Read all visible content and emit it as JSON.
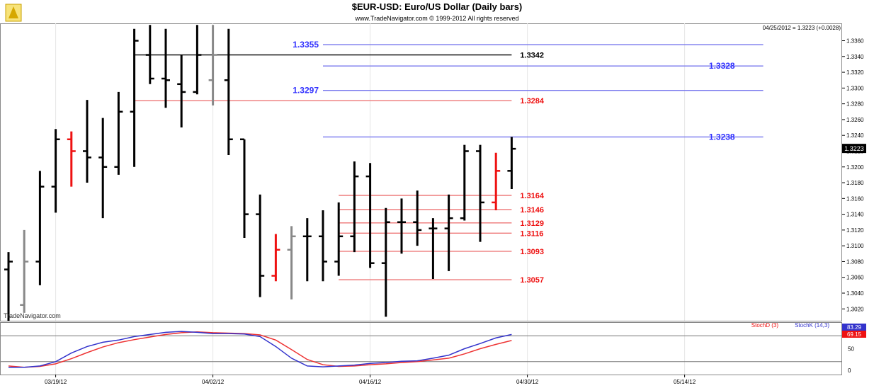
{
  "header": {
    "title": "$EUR-USD:  Euro/US Dollar  (Daily bars)",
    "subtitle": "www.TradeNavigator.com © 1999-2012 All rights reserved",
    "quote": "04/25/2012 = 1.3223 (+0.0028)",
    "watermark": "TradeNavigator.com"
  },
  "colors": {
    "background": "#ffffff",
    "bar": "#000000",
    "bar_down": "#ee1111",
    "bar_gray": "#888888",
    "level_blue": "#3333ff",
    "level_blue_line": "#7777ee",
    "level_red": "#ee1111",
    "level_red_line": "#ee7777",
    "level_black": "#000000",
    "stoch_d": "#ee3333",
    "stoch_k": "#3333cc"
  },
  "chart_data": {
    "type": "bar",
    "subtype": "ohlc",
    "title": "$EUR-USD:  Euro/US Dollar  (Daily bars)",
    "ylim": [
      1.3005,
      1.3382
    ],
    "price_ticks": [
      "1.3360",
      "1.3340",
      "1.3320",
      "1.3300",
      "1.3280",
      "1.3260",
      "1.3240",
      "1.3220",
      "1.3200",
      "1.3180",
      "1.3160",
      "1.3140",
      "1.3120",
      "1.3100",
      "1.3080",
      "1.3060",
      "1.3040",
      "1.3020"
    ],
    "current_price": "1.3223",
    "x_ticks": [
      "03/19/12",
      "04/02/12",
      "04/16/12",
      "04/30/12",
      "05/14/12"
    ],
    "x_tick_index": [
      3,
      13,
      23,
      33,
      43
    ],
    "bars": [
      {
        "o": 1.307,
        "h": 1.3092,
        "l": 1.3005,
        "c": 1.308,
        "color": "black"
      },
      {
        "o": 1.3025,
        "h": 1.312,
        "l": 1.3015,
        "c": 1.308,
        "color": "gray"
      },
      {
        "o": 1.308,
        "h": 1.3195,
        "l": 1.305,
        "c": 1.3175,
        "color": "black"
      },
      {
        "o": 1.3175,
        "h": 1.3248,
        "l": 1.3142,
        "c": 1.3235,
        "color": "black"
      },
      {
        "o": 1.3235,
        "h": 1.3245,
        "l": 1.3175,
        "c": 1.322,
        "color": "red"
      },
      {
        "o": 1.322,
        "h": 1.3285,
        "l": 1.318,
        "c": 1.3212,
        "color": "black"
      },
      {
        "o": 1.3212,
        "h": 1.3262,
        "l": 1.3135,
        "c": 1.32,
        "color": "black"
      },
      {
        "o": 1.32,
        "h": 1.3295,
        "l": 1.319,
        "c": 1.327,
        "color": "black"
      },
      {
        "o": 1.327,
        "h": 1.3375,
        "l": 1.32,
        "c": 1.336,
        "color": "black"
      },
      {
        "o": 1.3342,
        "h": 1.338,
        "l": 1.3305,
        "c": 1.3312,
        "color": "black"
      },
      {
        "o": 1.3312,
        "h": 1.3375,
        "l": 1.3275,
        "c": 1.331,
        "color": "black"
      },
      {
        "o": 1.3305,
        "h": 1.3342,
        "l": 1.325,
        "c": 1.3295,
        "color": "black"
      },
      {
        "o": 1.3295,
        "h": 1.338,
        "l": 1.3292,
        "c": 1.3342,
        "color": "black"
      },
      {
        "o": 1.331,
        "h": 1.338,
        "l": 1.3278,
        "c": 1.3342,
        "color": "gray"
      },
      {
        "o": 1.331,
        "h": 1.3375,
        "l": 1.3215,
        "c": 1.3235,
        "color": "black"
      },
      {
        "o": 1.3235,
        "h": 1.3235,
        "l": 1.311,
        "c": 1.314,
        "color": "black"
      },
      {
        "o": 1.314,
        "h": 1.3165,
        "l": 1.3035,
        "c": 1.3062,
        "color": "black"
      },
      {
        "o": 1.3062,
        "h": 1.3115,
        "l": 1.3055,
        "c": 1.3095,
        "color": "red"
      },
      {
        "o": 1.3095,
        "h": 1.3125,
        "l": 1.3032,
        "c": 1.3112,
        "color": "gray"
      },
      {
        "o": 1.3112,
        "h": 1.3135,
        "l": 1.3055,
        "c": 1.3112,
        "color": "black"
      },
      {
        "o": 1.3112,
        "h": 1.3145,
        "l": 1.3055,
        "c": 1.308,
        "color": "black"
      },
      {
        "o": 1.308,
        "h": 1.3155,
        "l": 1.3062,
        "c": 1.3112,
        "color": "black"
      },
      {
        "o": 1.3112,
        "h": 1.3207,
        "l": 1.3092,
        "c": 1.3188,
        "color": "black"
      },
      {
        "o": 1.3188,
        "h": 1.3205,
        "l": 1.3072,
        "c": 1.3078,
        "color": "black"
      },
      {
        "o": 1.3078,
        "h": 1.3148,
        "l": 1.301,
        "c": 1.313,
        "color": "black"
      },
      {
        "o": 1.313,
        "h": 1.316,
        "l": 1.309,
        "c": 1.313,
        "color": "black"
      },
      {
        "o": 1.313,
        "h": 1.317,
        "l": 1.31,
        "c": 1.312,
        "color": "black"
      },
      {
        "o": 1.3122,
        "h": 1.3135,
        "l": 1.3058,
        "c": 1.3122,
        "color": "black"
      },
      {
        "o": 1.3122,
        "h": 1.3165,
        "l": 1.3068,
        "c": 1.3135,
        "color": "black"
      },
      {
        "o": 1.3135,
        "h": 1.3228,
        "l": 1.3132,
        "c": 1.322,
        "color": "black"
      },
      {
        "o": 1.322,
        "h": 1.3228,
        "l": 1.3105,
        "c": 1.3155,
        "color": "black"
      },
      {
        "o": 1.3155,
        "h": 1.3218,
        "l": 1.3145,
        "c": 1.3195,
        "color": "red"
      },
      {
        "o": 1.3195,
        "h": 1.3238,
        "l": 1.3172,
        "c": 1.3223,
        "color": "black"
      }
    ],
    "levels": [
      {
        "value": 1.3355,
        "label": "1.3355",
        "color": "blue",
        "label_side": "left",
        "from_bar": 20,
        "to_bar": 48
      },
      {
        "value": 1.3342,
        "label": "1.3342",
        "color": "black",
        "label_side": "right",
        "from_bar": 8,
        "to_bar": 32
      },
      {
        "value": 1.3328,
        "label": "1.3328",
        "color": "blue",
        "label_side": "right",
        "from_bar": 20,
        "to_bar": 48
      },
      {
        "value": 1.3297,
        "label": "1.3297",
        "color": "blue",
        "label_side": "left",
        "from_bar": 20,
        "to_bar": 48
      },
      {
        "value": 1.3284,
        "label": "1.3284",
        "color": "red",
        "label_side": "right",
        "from_bar": 8,
        "to_bar": 32
      },
      {
        "value": 1.3238,
        "label": "1.3238",
        "color": "blue",
        "label_side": "right",
        "from_bar": 20,
        "to_bar": 48
      },
      {
        "value": 1.3164,
        "label": "1.3164",
        "color": "red",
        "label_side": "right",
        "from_bar": 21,
        "to_bar": 32
      },
      {
        "value": 1.3146,
        "label": "1.3146",
        "color": "red",
        "label_side": "right",
        "from_bar": 21,
        "to_bar": 32
      },
      {
        "value": 1.3129,
        "label": "1.3129",
        "color": "red",
        "label_side": "right",
        "from_bar": 21,
        "to_bar": 32
      },
      {
        "value": 1.3116,
        "label": "1.3116",
        "color": "red",
        "label_side": "right",
        "from_bar": 21,
        "to_bar": 32
      },
      {
        "value": 1.3093,
        "label": "1.3093",
        "color": "red",
        "label_side": "right",
        "from_bar": 21,
        "to_bar": 32
      },
      {
        "value": 1.3057,
        "label": "1.3057",
        "color": "red",
        "label_side": "right",
        "from_bar": 21,
        "to_bar": 32
      }
    ],
    "stochastic": {
      "ylim": [
        0,
        100
      ],
      "ticks": [
        "50",
        "0"
      ],
      "reference_lines": [
        80,
        20
      ],
      "legend_d": "StochD (3)",
      "legend_k": "StochK (14,3)",
      "value_k": "83.29",
      "value_d": "69.15",
      "stoch_k": [
        7,
        7,
        10,
        20,
        40,
        55,
        65,
        70,
        78,
        83,
        88,
        90,
        88,
        85,
        85,
        84,
        78,
        55,
        28,
        10,
        8,
        10,
        12,
        16,
        18,
        21,
        22,
        28,
        35,
        50,
        62,
        75,
        83
      ],
      "stoch_d": [
        10,
        7,
        9,
        15,
        27,
        41,
        54,
        64,
        71,
        77,
        83,
        87,
        89,
        87,
        86,
        85,
        82,
        70,
        48,
        25,
        13,
        9,
        10,
        13,
        15,
        18,
        20,
        24,
        28,
        38,
        50,
        60,
        69
      ]
    }
  }
}
